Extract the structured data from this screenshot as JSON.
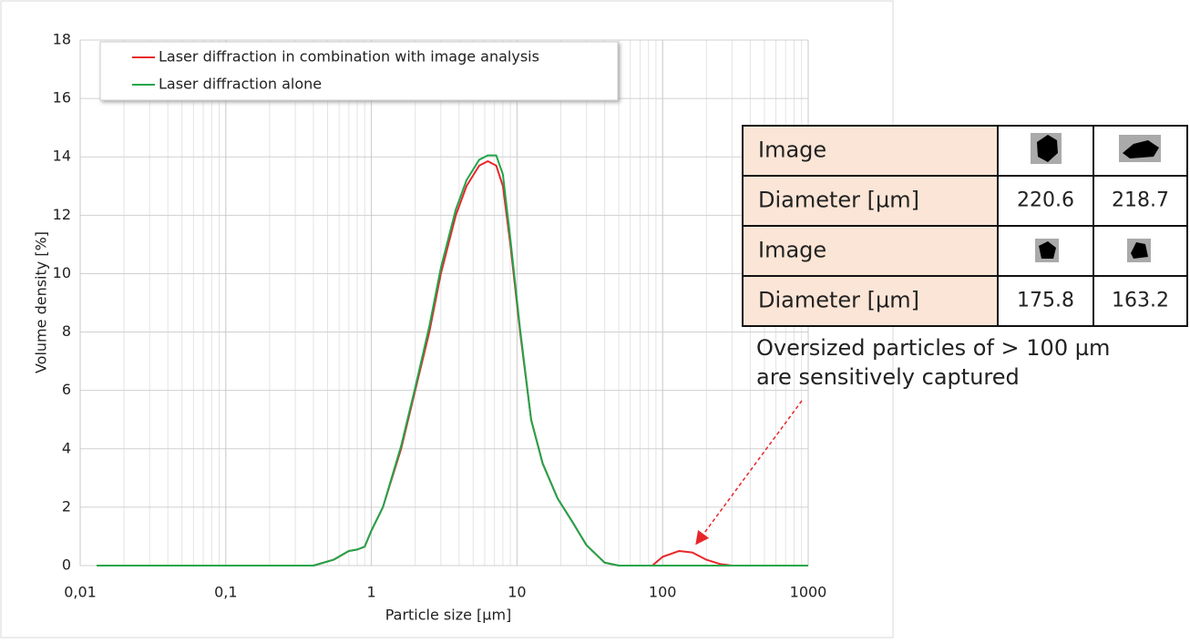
{
  "chart_data": {
    "type": "line",
    "xlabel": "Particle size [µm]",
    "ylabel": "Volume density [%]",
    "x": [
      0.013,
      0.1,
      0.4,
      0.55,
      0.7,
      0.8,
      0.9,
      1,
      1.2,
      1.6,
      2,
      2.5,
      3,
      3.8,
      4.5,
      5.5,
      6.3,
      7.2,
      8,
      9,
      10.5,
      12.5,
      15,
      19,
      24,
      30,
      40,
      50,
      85,
      100,
      130,
      160,
      200,
      250,
      300,
      1000
    ],
    "series": [
      {
        "name": "Laser diffraction in combination with image analysis",
        "color": "#e8262a",
        "values": [
          0,
          0,
          0,
          0.2,
          0.5,
          0.55,
          0.65,
          1.2,
          2,
          4,
          6,
          8,
          10,
          12,
          13,
          13.7,
          13.85,
          13.7,
          13,
          11,
          8,
          5,
          3.5,
          2.3,
          1.5,
          0.7,
          0.1,
          0,
          0,
          0.3,
          0.5,
          0.45,
          0.2,
          0.05,
          0,
          0
        ]
      },
      {
        "name": "Laser diffraction alone",
        "color": "#21a54a",
        "values": [
          0,
          0,
          0,
          0.2,
          0.5,
          0.55,
          0.65,
          1.2,
          2,
          4.1,
          6.1,
          8.2,
          10.2,
          12.2,
          13.2,
          13.9,
          14.05,
          14.05,
          13.4,
          11.2,
          8.1,
          5,
          3.5,
          2.3,
          1.5,
          0.7,
          0.1,
          0,
          0,
          0,
          0,
          0,
          0,
          0,
          0,
          0
        ]
      }
    ],
    "xscale": "log",
    "xlim": [
      0.01,
      1000
    ],
    "xticks": [
      {
        "value": 0.01,
        "label": "0,01"
      },
      {
        "value": 0.1,
        "label": "0,1"
      },
      1,
      10,
      100,
      1000
    ],
    "ylim": [
      0,
      18
    ],
    "yticks": [
      0,
      2,
      4,
      6,
      8,
      10,
      12,
      14,
      16,
      18
    ],
    "grid": true,
    "legend": "upper left"
  },
  "table": {
    "rows": [
      {
        "label": "Image"
      },
      {
        "label": "Diameter [µm]",
        "values": [
          "220.6",
          "218.7"
        ]
      },
      {
        "label": "Image"
      },
      {
        "label": "Diameter [µm]",
        "values": [
          "175.8",
          "163.2"
        ]
      }
    ]
  },
  "callout": [
    "Oversized particles of > 100 µm",
    "are sensitively captured"
  ]
}
